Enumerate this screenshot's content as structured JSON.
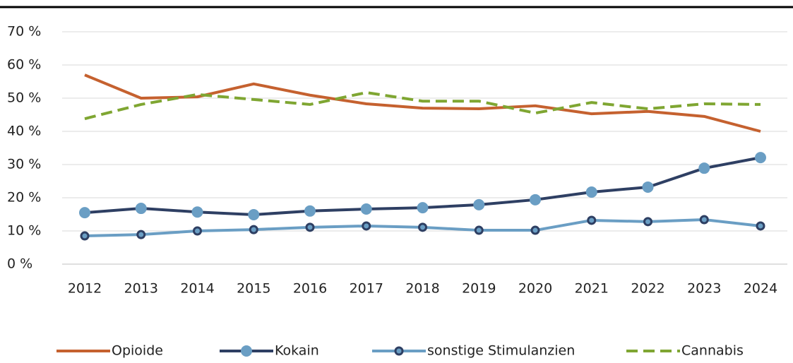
{
  "chart_data": {
    "type": "line",
    "categories": [
      "2012",
      "2013",
      "2014",
      "2015",
      "2016",
      "2017",
      "2018",
      "2019",
      "2020",
      "2021",
      "2022",
      "2023",
      "2024"
    ],
    "series": [
      {
        "name": "Opioide",
        "color": "#c5612f",
        "values": [
          57.0,
          50.0,
          50.4,
          54.3,
          50.9,
          48.3,
          47.0,
          46.8,
          47.7,
          45.3,
          46.0,
          44.5,
          40.0
        ]
      },
      {
        "name": "Kokain",
        "color": "#2e3f63",
        "marker": "circle",
        "marker_color": "#6a9ec4",
        "values": [
          15.5,
          16.8,
          15.7,
          14.9,
          16.0,
          16.6,
          17.0,
          17.9,
          19.4,
          21.7,
          23.2,
          28.9,
          32.1
        ]
      },
      {
        "name": "sonstige Stimulanzien",
        "color": "#6a9ec4",
        "marker": "circle",
        "marker_color": "#6a9ec4",
        "marker_edge": "#2e3f63",
        "values": [
          8.5,
          8.9,
          10.0,
          10.4,
          11.1,
          11.5,
          11.1,
          10.2,
          10.2,
          13.2,
          12.8,
          13.4,
          11.5
        ]
      },
      {
        "name": "Cannabis",
        "color": "#7fa632",
        "dashed": true,
        "values": [
          43.8,
          48.1,
          51.1,
          49.6,
          48.1,
          51.7,
          49.1,
          49.1,
          45.5,
          48.7,
          46.8,
          48.3,
          48.1
        ]
      }
    ],
    "ylim": [
      0,
      70
    ],
    "yticks": [
      {
        "value": 0,
        "label": "0 %"
      },
      {
        "value": 10,
        "label": "10 %"
      },
      {
        "value": 20,
        "label": "20 %"
      },
      {
        "value": 30,
        "label": "30 %"
      },
      {
        "value": 40,
        "label": "40 %"
      },
      {
        "value": 50,
        "label": "50 %"
      },
      {
        "value": 60,
        "label": "60 %"
      },
      {
        "value": 70,
        "label": "70 %"
      }
    ],
    "grid": true,
    "legend": "bottom"
  }
}
